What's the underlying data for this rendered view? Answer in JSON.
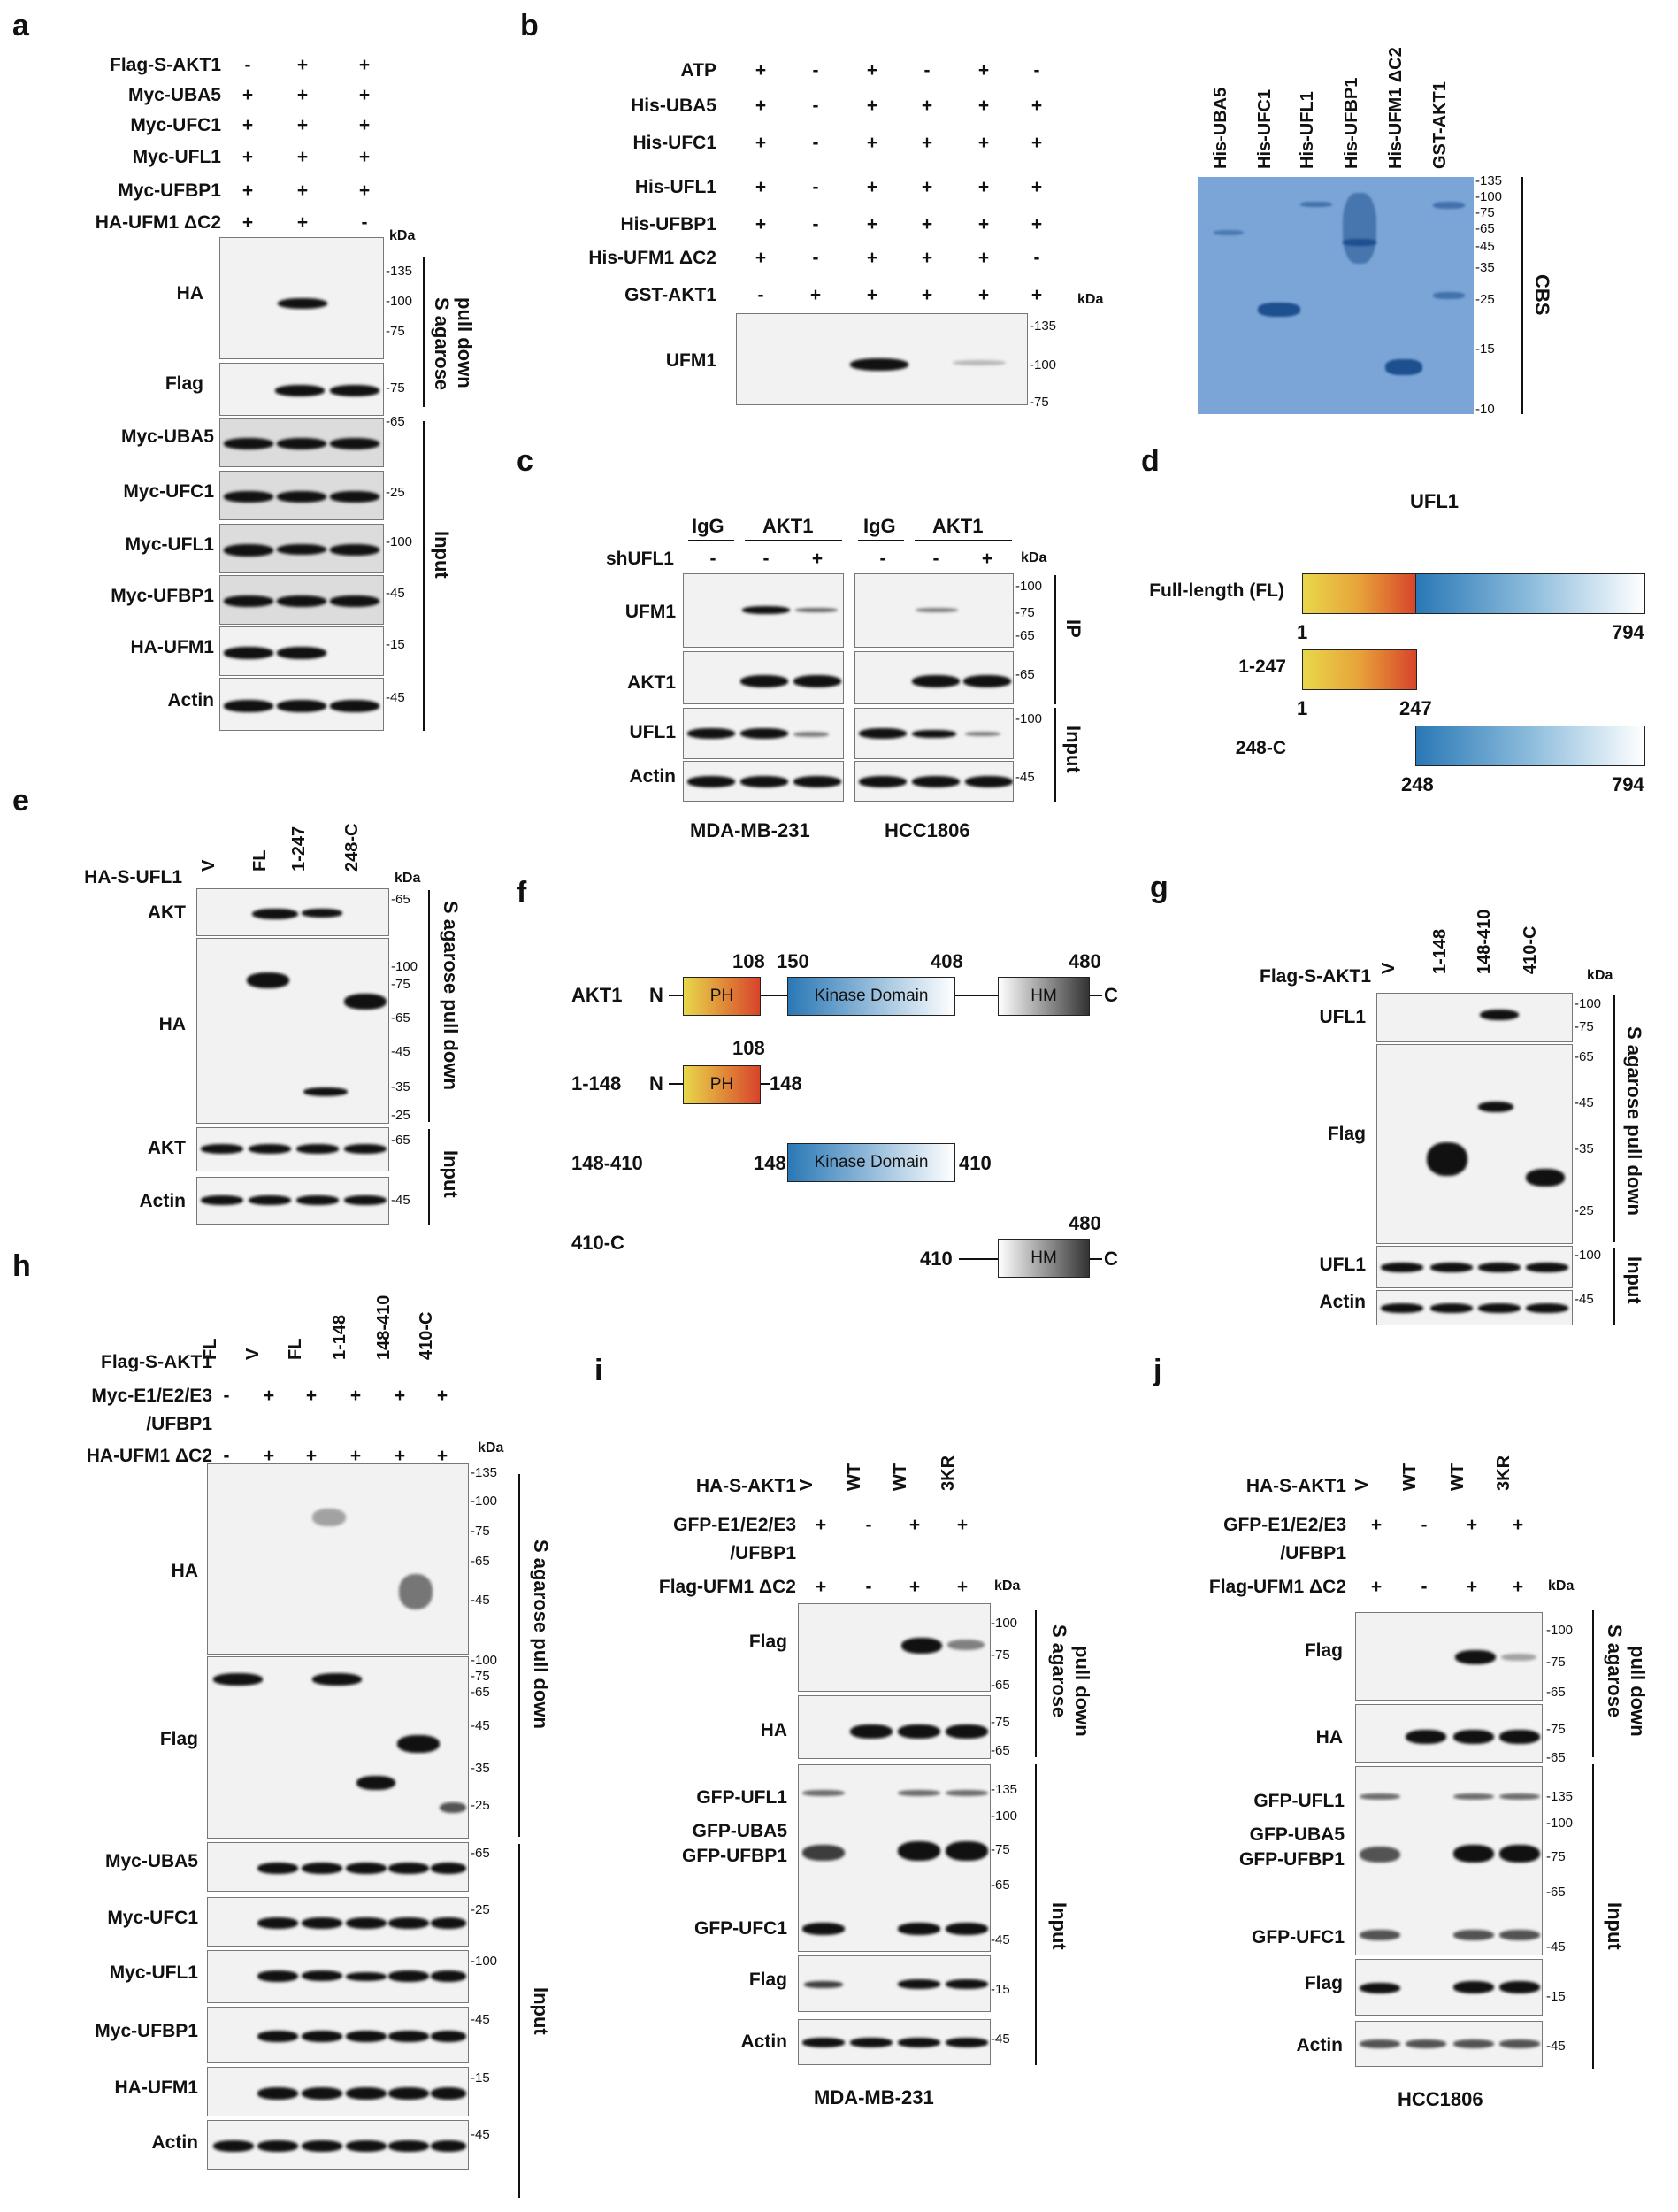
{
  "panel_a": {
    "letter": "a",
    "rows": [
      {
        "label": "Flag-S-AKT1",
        "signs": [
          "-",
          "+",
          "+"
        ]
      },
      {
        "label": "Myc-UBA5",
        "signs": [
          "+",
          "+",
          "+"
        ]
      },
      {
        "label": "Myc-UFC1",
        "signs": [
          "+",
          "+",
          "+"
        ]
      },
      {
        "label": "Myc-UFL1",
        "signs": [
          "+",
          "+",
          "+"
        ]
      },
      {
        "label": "Myc-UFBP1",
        "signs": [
          "+",
          "+",
          "+"
        ]
      },
      {
        "label": "HA-UFM1 ΔC2",
        "signs": [
          "+",
          "+",
          "-"
        ]
      }
    ],
    "kda": "kDa",
    "blots": [
      "HA",
      "Flag",
      "Myc-UBA5",
      "Myc-UFC1",
      "Myc-UFL1",
      "Myc-UFBP1",
      "HA-UFM1",
      "Actin"
    ],
    "mw": [
      "-135",
      "-100",
      "-75",
      "-75",
      "-65",
      "-25",
      "-100",
      "-45",
      "-15",
      "-45"
    ],
    "side": [
      "S agarose",
      "pull down",
      "Input"
    ]
  },
  "panel_b": {
    "letter": "b",
    "rows": [
      {
        "label": "ATP",
        "signs": [
          "+",
          "-",
          "+",
          "-",
          "+",
          "-"
        ]
      },
      {
        "label": "His-UBA5",
        "signs": [
          "+",
          "-",
          "+",
          "+",
          "+",
          "+"
        ]
      },
      {
        "label": "His-UFC1",
        "signs": [
          "+",
          "-",
          "+",
          "+",
          "+",
          "+"
        ]
      },
      {
        "label": "His-UFL1",
        "signs": [
          "+",
          "-",
          "+",
          "+",
          "+",
          "+"
        ]
      },
      {
        "label": "His-UFBP1",
        "signs": [
          "+",
          "-",
          "+",
          "+",
          "+",
          "+"
        ]
      },
      {
        "label": "His-UFM1 ΔC2",
        "signs": [
          "+",
          "-",
          "+",
          "+",
          "+",
          "-"
        ]
      },
      {
        "label": "GST-AKT1",
        "signs": [
          "-",
          "+",
          "+",
          "+",
          "+",
          "+"
        ]
      }
    ],
    "kda": "kDa",
    "blot": "UFM1",
    "mw": [
      "-135",
      "-100",
      "-75"
    ],
    "lanes": [
      "His-UBA5",
      "His-UFC1",
      "His-UFL1",
      "His-UFBP1",
      "His-UFM1 ΔC2",
      "GST-AKT1"
    ],
    "cbs_mw": [
      "-135",
      "-100",
      "-75",
      "-65",
      "-45",
      "-35",
      "-25",
      "-15",
      "-10"
    ],
    "cbs": "CBS"
  },
  "panel_c": {
    "letter": "c",
    "groups": [
      "IgG",
      "AKT1",
      "IgG",
      "AKT1"
    ],
    "sh": "shUFL1",
    "signs": [
      "-",
      "-",
      "+",
      "-",
      "-",
      "+"
    ],
    "kda": "kDa",
    "blots": [
      "UFM1",
      "AKT1",
      "UFL1",
      "Actin"
    ],
    "mw": [
      "-100",
      "-75",
      "-65",
      "-65",
      "-100",
      "-45"
    ],
    "side": [
      "IP",
      "Input"
    ],
    "cells": [
      "MDA-MB-231",
      "HCC1806"
    ]
  },
  "panel_d": {
    "letter": "d",
    "title": "UFL1",
    "constructs": [
      {
        "name": "Full-length (FL)",
        "start": "1",
        "end": "794"
      },
      {
        "name": "1-247",
        "start": "1",
        "end": "247"
      },
      {
        "name": "248-C",
        "start": "248",
        "end": "794"
      }
    ]
  },
  "panel_e": {
    "letter": "e",
    "label": "HA-S-UFL1",
    "lanes": [
      "V",
      "FL",
      "1-247",
      "248-C"
    ],
    "kda": "kDa",
    "blots": [
      "AKT",
      "HA",
      "AKT",
      "Actin"
    ],
    "mw": [
      "-65",
      "-100",
      "-75",
      "-65",
      "-45",
      "-35",
      "-25",
      "-65",
      "-45"
    ],
    "side": [
      "S agarose pull down",
      "Input"
    ]
  },
  "panel_f": {
    "letter": "f",
    "rows": [
      {
        "name": "AKT1",
        "n": "N",
        "c": "C",
        "nums": [
          "108",
          "150",
          "408",
          "480"
        ]
      },
      {
        "name": "1-148",
        "n": "N",
        "end": "148",
        "nums": [
          "108"
        ]
      },
      {
        "name": "148-410",
        "start": "148",
        "end": "410"
      },
      {
        "name": "410-C",
        "start": "410",
        "c": "C",
        "nums": [
          "480"
        ]
      }
    ],
    "domains": {
      "ph": "PH",
      "kinase": "Kinase Domain",
      "hm": "HM"
    }
  },
  "panel_g": {
    "letter": "g",
    "label": "Flag-S-AKT1",
    "lanes": [
      "V",
      "1-148",
      "148-410",
      "410-C"
    ],
    "kda": "kDa",
    "blots": [
      "UFL1",
      "Flag",
      "UFL1",
      "Actin"
    ],
    "mw": [
      "-100",
      "-75",
      "-65",
      "-45",
      "-35",
      "-25",
      "-100",
      "-45"
    ],
    "side": [
      "S agarose pull down",
      "Input"
    ]
  },
  "panel_h": {
    "letter": "h",
    "rows": [
      {
        "label": "Flag-S-AKT1",
        "signs": [
          "FL",
          "V",
          "FL",
          "1-148",
          "148-410",
          "410-C"
        ]
      },
      {
        "label": "Myc-E1/E2/E3",
        "signs": [
          "-",
          "+",
          "+",
          "+",
          "+",
          "+"
        ]
      },
      {
        "label": "/UFBP1",
        "signs": []
      },
      {
        "label": "HA-UFM1 ΔC2",
        "signs": [
          "-",
          "+",
          "+",
          "+",
          "+",
          "+"
        ]
      }
    ],
    "kda": "kDa",
    "blots": [
      "HA",
      "Flag",
      "Myc-UBA5",
      "Myc-UFC1",
      "Myc-UFL1",
      "Myc-UFBP1",
      "HA-UFM1",
      "Actin"
    ],
    "mw": [
      "-135",
      "-100",
      "-75",
      "-65",
      "-45",
      "-100",
      "-75",
      "-65",
      "-45",
      "-35",
      "-25",
      "-65",
      "-25",
      "-100",
      "-45",
      "-15",
      "-45"
    ],
    "side": [
      "S agarose pull down",
      "Input"
    ]
  },
  "panel_i": {
    "letter": "i",
    "rows": [
      {
        "label": "HA-S-AKT1",
        "signs": [
          "V",
          "WT",
          "WT",
          "3KR"
        ]
      },
      {
        "label": "GFP-E1/E2/E3",
        "signs": [
          "+",
          "-",
          "+",
          "+"
        ]
      },
      {
        "label": "/UFBP1",
        "signs": []
      },
      {
        "label": "Flag-UFM1 ΔC2",
        "signs": [
          "+",
          "-",
          "+",
          "+"
        ]
      }
    ],
    "kda": "kDa",
    "blots": [
      "Flag",
      "HA",
      "GFP-UFL1",
      "GFP-UBA5",
      "GFP-UFBP1",
      "GFP-UFC1",
      "Flag",
      "Actin"
    ],
    "mw": [
      "-100",
      "-75",
      "-65",
      "-75",
      "-65",
      "-135",
      "-100",
      "-75",
      "-65",
      "-45",
      "-15",
      "-45"
    ],
    "side": [
      "S agarose",
      "pull down",
      "Input"
    ],
    "cell": "MDA-MB-231"
  },
  "panel_j": {
    "letter": "j",
    "rows": [
      {
        "label": "HA-S-AKT1",
        "signs": [
          "V",
          "WT",
          "WT",
          "3KR"
        ]
      },
      {
        "label": "GFP-E1/E2/E3",
        "signs": [
          "+",
          "-",
          "+",
          "+"
        ]
      },
      {
        "label": "/UFBP1",
        "signs": []
      },
      {
        "label": "Flag-UFM1 ΔC2",
        "signs": [
          "+",
          "-",
          "+",
          "+"
        ]
      }
    ],
    "kda": "kDa",
    "blots": [
      "Flag",
      "HA",
      "GFP-UFL1",
      "GFP-UBA5",
      "GFP-UFBP1",
      "GFP-UFC1",
      "Flag",
      "Actin"
    ],
    "mw": [
      "-100",
      "-75",
      "-65",
      "-75",
      "-65",
      "-135",
      "-100",
      "-75",
      "-65",
      "-45",
      "-15",
      "-45"
    ],
    "side": [
      "S agarose",
      "pull down",
      "Input"
    ],
    "cell": "HCC1806"
  }
}
